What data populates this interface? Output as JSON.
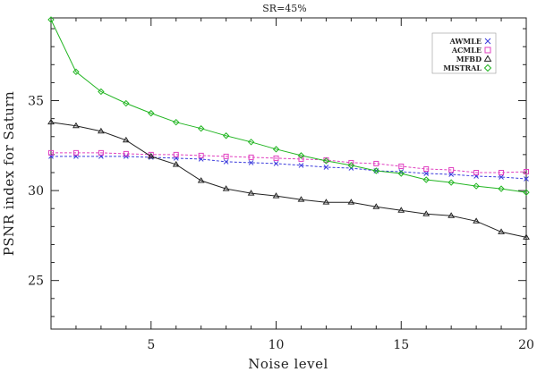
{
  "chart_data": {
    "type": "line",
    "title": "SR=45%",
    "xlabel": "Noise level",
    "ylabel": "PSNR index for Saturn",
    "xlim": [
      1,
      20
    ],
    "ylim": [
      22.3,
      39.6
    ],
    "xticks": [
      5,
      10,
      15,
      20
    ],
    "yticks": [
      25,
      30,
      35
    ],
    "grid": false,
    "legend_position": "top-right",
    "x": [
      1,
      2,
      3,
      4,
      5,
      6,
      7,
      8,
      9,
      10,
      11,
      12,
      13,
      14,
      15,
      16,
      17,
      18,
      19,
      20
    ],
    "series": [
      {
        "name": "AWMLE",
        "color": "#3b3bdc",
        "marker": "x",
        "linestyle": "dashed",
        "values": [
          31.9,
          31.9,
          31.9,
          31.9,
          31.85,
          31.8,
          31.75,
          31.6,
          31.55,
          31.5,
          31.4,
          31.3,
          31.25,
          31.1,
          31.05,
          30.95,
          30.9,
          30.8,
          30.75,
          30.65
        ]
      },
      {
        "name": "ACMLE",
        "color": "#e040c0",
        "marker": "square",
        "linestyle": "dashed",
        "values": [
          32.1,
          32.1,
          32.1,
          32.05,
          32.0,
          32.0,
          31.95,
          31.9,
          31.85,
          31.8,
          31.75,
          31.7,
          31.55,
          31.5,
          31.35,
          31.2,
          31.15,
          31.0,
          31.0,
          31.05
        ]
      },
      {
        "name": "MFBD",
        "color": "#222222",
        "marker": "triangle",
        "linestyle": "solid",
        "values": [
          33.8,
          33.6,
          33.3,
          32.8,
          31.9,
          31.45,
          30.55,
          30.1,
          29.85,
          29.7,
          29.5,
          29.35,
          29.35,
          29.1,
          28.9,
          28.7,
          28.6,
          28.3,
          27.7,
          27.4
        ]
      },
      {
        "name": "MISTRAL",
        "color": "#22b522",
        "marker": "diamond",
        "linestyle": "solid",
        "values": [
          39.5,
          36.6,
          35.5,
          34.85,
          34.3,
          33.8,
          33.45,
          33.05,
          32.7,
          32.3,
          31.95,
          31.65,
          31.4,
          31.1,
          30.95,
          30.6,
          30.45,
          30.25,
          30.1,
          29.9
        ]
      }
    ]
  }
}
